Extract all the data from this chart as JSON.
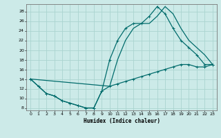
{
  "xlabel": "Humidex (Indice chaleur)",
  "xlim": [
    -0.5,
    23.5
  ],
  "ylim": [
    7.5,
    29.5
  ],
  "yticks": [
    8,
    10,
    12,
    14,
    16,
    18,
    20,
    22,
    24,
    26,
    28
  ],
  "xticks": [
    0,
    1,
    2,
    3,
    4,
    5,
    6,
    7,
    8,
    9,
    10,
    11,
    12,
    13,
    14,
    15,
    16,
    17,
    18,
    19,
    20,
    21,
    22,
    23
  ],
  "bg_color": "#cceae8",
  "grid_color": "#aad4d0",
  "line_color": "#006b6b",
  "line1_x": [
    0,
    1,
    2,
    3,
    4,
    5,
    6,
    7,
    8,
    9,
    10,
    11,
    12,
    13,
    14,
    15,
    16,
    17,
    18,
    19,
    20,
    21,
    22,
    23
  ],
  "line1_y": [
    14.0,
    12.5,
    11.0,
    10.5,
    9.5,
    9.0,
    8.5,
    8.0,
    8.0,
    11.5,
    18.0,
    22.0,
    24.5,
    25.5,
    25.5,
    27.0,
    29.0,
    27.5,
    24.5,
    22.0,
    20.5,
    19.0,
    17.0,
    17.0
  ],
  "line2_x": [
    0,
    1,
    2,
    3,
    4,
    5,
    6,
    7,
    8,
    9,
    10,
    11,
    12,
    13,
    14,
    15,
    16,
    17,
    18,
    19,
    20,
    21,
    22,
    23
  ],
  "line2_y": [
    14.0,
    12.5,
    11.0,
    10.5,
    9.5,
    9.0,
    8.5,
    8.0,
    8.0,
    11.5,
    12.5,
    13.0,
    13.5,
    14.0,
    14.5,
    15.0,
    15.5,
    16.0,
    16.5,
    17.0,
    17.0,
    16.5,
    16.5,
    17.0
  ],
  "line3_x": [
    0,
    10,
    11,
    12,
    13,
    14,
    15,
    16,
    17,
    18,
    19,
    20,
    21,
    22,
    23
  ],
  "line3_y": [
    14.0,
    12.5,
    18.0,
    22.0,
    24.5,
    25.5,
    25.5,
    27.0,
    29.0,
    27.5,
    24.5,
    22.0,
    20.5,
    19.0,
    17.0
  ]
}
